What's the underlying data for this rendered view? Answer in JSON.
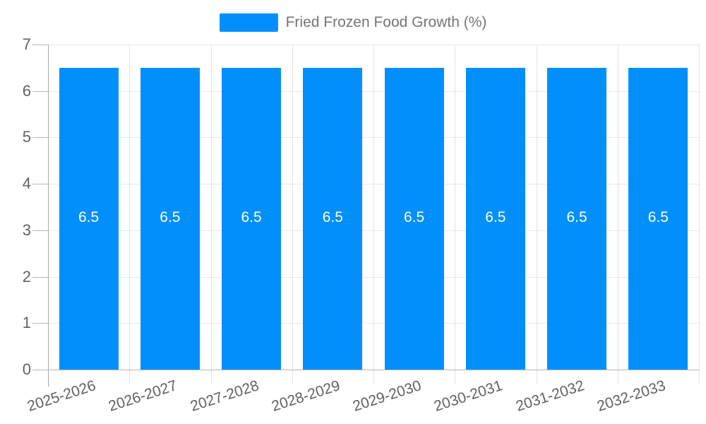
{
  "chart_data": {
    "type": "bar",
    "title": "Fried Frozen Food Growth (%)",
    "categories": [
      "2025-2026",
      "2026-2027",
      "2027-2028",
      "2028-2029",
      "2029-2030",
      "2030-2031",
      "2031-2032",
      "2032-2033"
    ],
    "series": [
      {
        "name": "Fried Frozen Food Growth (%)",
        "values": [
          6.5,
          6.5,
          6.5,
          6.5,
          6.5,
          6.5,
          6.5,
          6.5
        ]
      }
    ],
    "data_labels": [
      "6.5",
      "6.5",
      "6.5",
      "6.5",
      "6.5",
      "6.5",
      "6.5",
      "6.5"
    ],
    "xlabel": "",
    "ylabel": "",
    "ylim": [
      0,
      7
    ],
    "yticks": [
      0,
      1,
      2,
      3,
      4,
      5,
      6,
      7
    ],
    "grid": true,
    "legend_position": "top",
    "x_label_rotation_deg": -18
  },
  "colors": {
    "bar": "#008FFB",
    "data_label": "#ffffff",
    "legend_text": "#757575",
    "axis_label": "#616161",
    "gridline": "#e7e7e7",
    "vline": "#e4e4e4",
    "axis_line": "#a9a9a9",
    "baseline": "#b5b5b5",
    "tick": "#b8b8b8",
    "background": "#ffffff"
  }
}
